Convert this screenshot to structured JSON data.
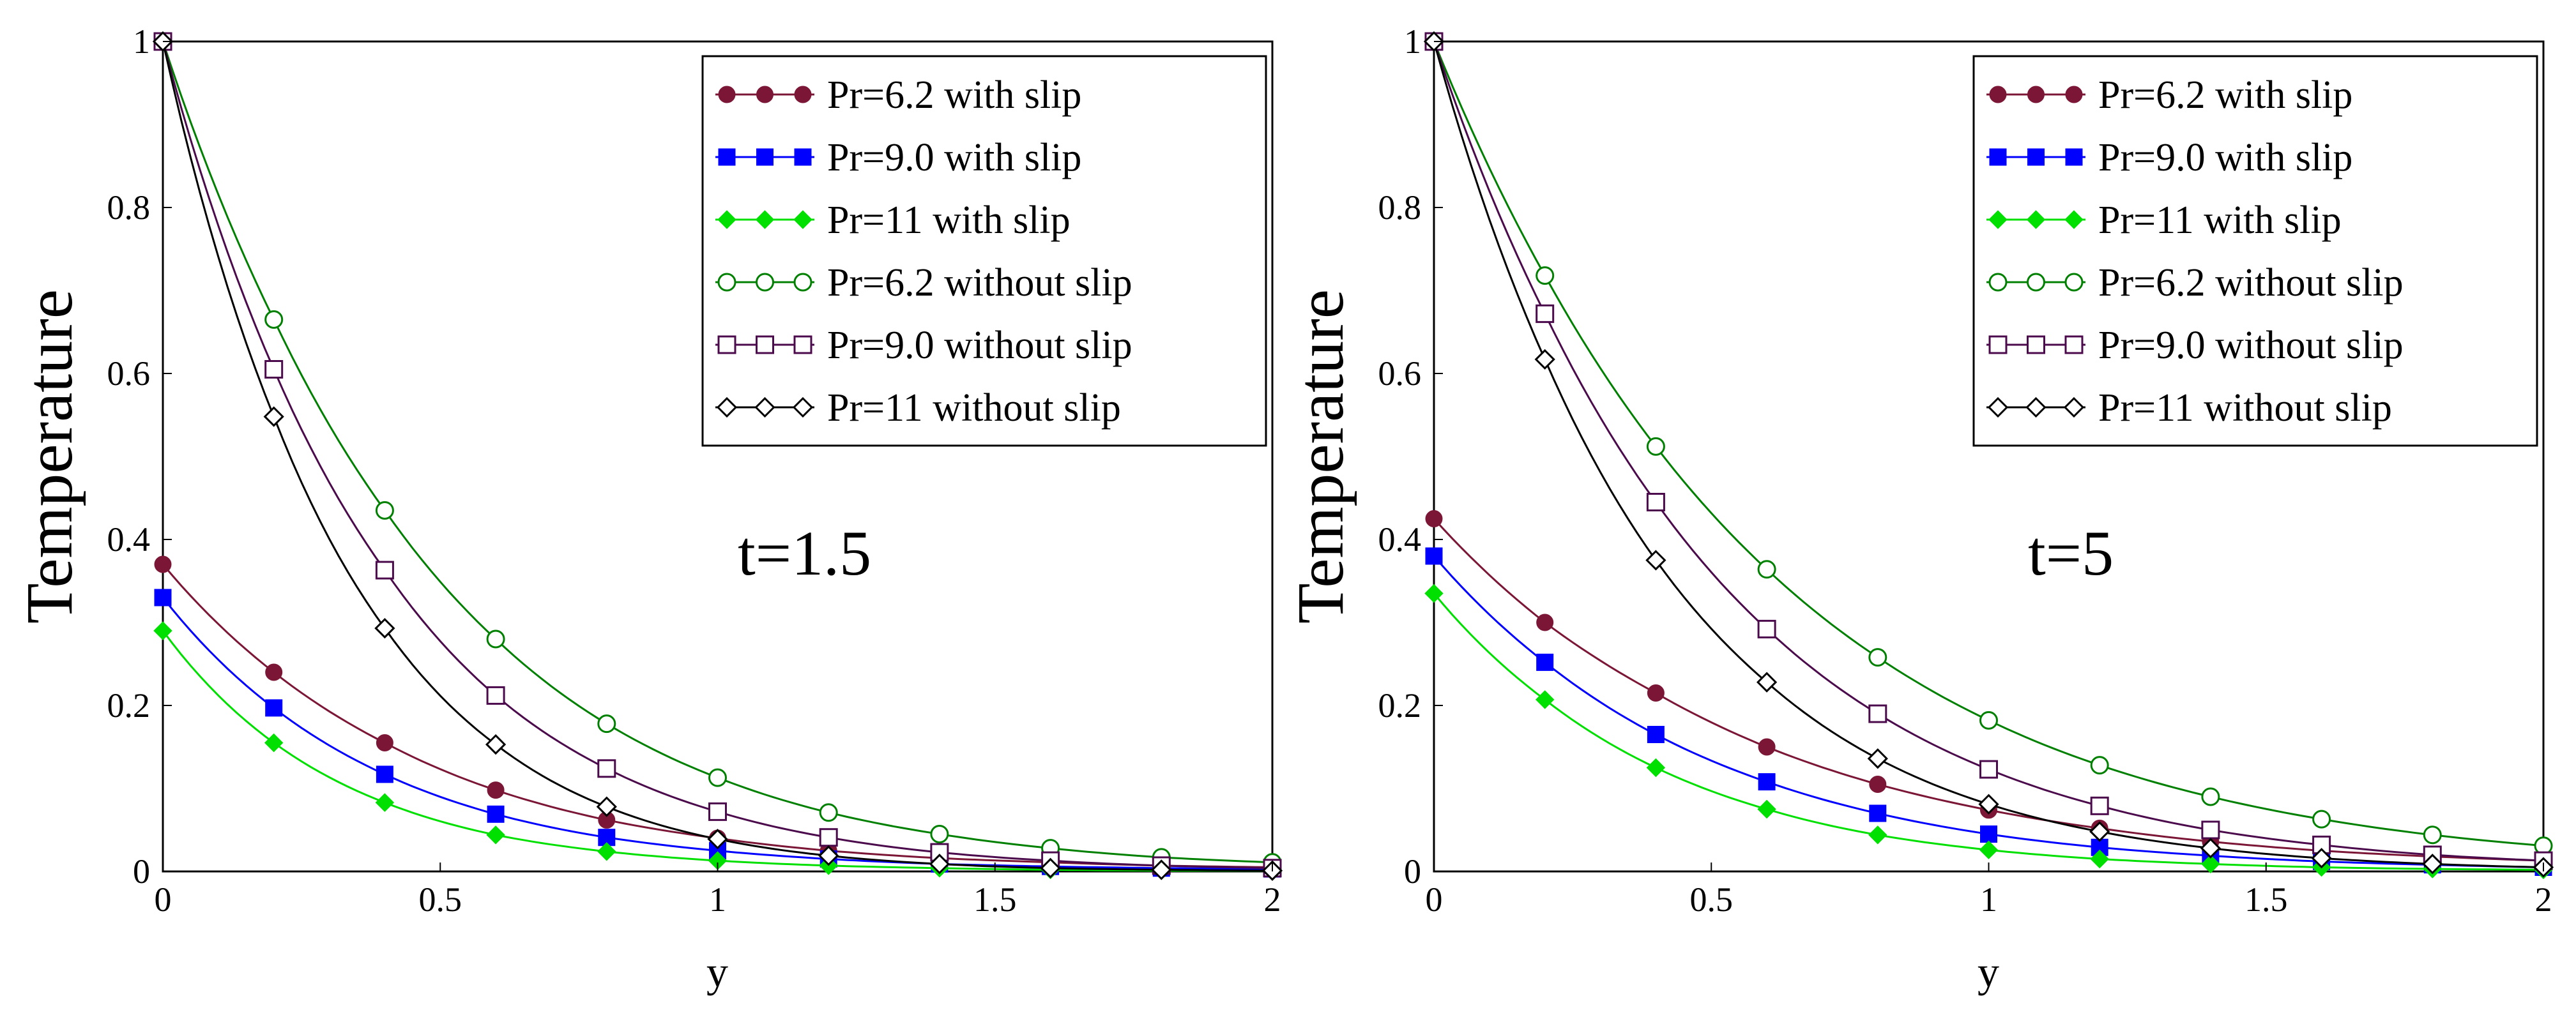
{
  "chart_data": [
    {
      "type": "line",
      "annotation": "t=1.5",
      "xlabel": "y",
      "ylabel": "Temperature",
      "xlim": [
        0,
        2
      ],
      "ylim": [
        0,
        1
      ],
      "xticks": [
        "0",
        "0.5",
        "1",
        "1.5",
        "2"
      ],
      "yticks": [
        "0",
        "0.2",
        "0.4",
        "0.6",
        "0.8",
        "1"
      ],
      "legend_position": "top-right",
      "x": [
        0,
        0.2,
        0.4,
        0.6,
        0.8,
        1.0,
        1.2,
        1.4,
        1.6,
        1.8,
        2.0
      ],
      "series": [
        {
          "name": "Pr=6.2 with slip",
          "color": "#7b1636",
          "marker": "filled-circle",
          "values": [
            0.37,
            0.24,
            0.155,
            0.098,
            0.062,
            0.04,
            0.025,
            0.016,
            0.011,
            0.007,
            0.005
          ]
        },
        {
          "name": "Pr=9.0 with slip",
          "color": "#0000ff",
          "marker": "filled-square",
          "values": [
            0.33,
            0.197,
            0.117,
            0.069,
            0.041,
            0.025,
            0.015,
            0.009,
            0.006,
            0.004,
            0.003
          ]
        },
        {
          "name": "Pr=11 with slip",
          "color": "#00e000",
          "marker": "filled-diamond",
          "values": [
            0.29,
            0.155,
            0.083,
            0.044,
            0.024,
            0.013,
            0.007,
            0.004,
            0.002,
            0.001,
            0.001
          ]
        },
        {
          "name": "Pr=6.2 without slip",
          "color": "#008000",
          "marker": "open-circle",
          "values": [
            1.0,
            0.665,
            0.435,
            0.28,
            0.178,
            0.113,
            0.071,
            0.045,
            0.028,
            0.017,
            0.011
          ]
        },
        {
          "name": "Pr=9.0 without slip",
          "color": "#4b0a4b",
          "marker": "open-square",
          "values": [
            1.0,
            0.605,
            0.363,
            0.212,
            0.124,
            0.072,
            0.041,
            0.023,
            0.013,
            0.007,
            0.004
          ]
        },
        {
          "name": "Pr=11 without slip",
          "color": "#000000",
          "marker": "open-diamond",
          "values": [
            1.0,
            0.548,
            0.293,
            0.153,
            0.078,
            0.039,
            0.019,
            0.009,
            0.004,
            0.002,
            0.001
          ]
        }
      ]
    },
    {
      "type": "line",
      "annotation": "t=5",
      "xlabel": "y",
      "ylabel": "Temperature",
      "xlim": [
        0,
        2
      ],
      "ylim": [
        0,
        1
      ],
      "xticks": [
        "0",
        "0.5",
        "1",
        "1.5",
        "2"
      ],
      "yticks": [
        "0",
        "0.2",
        "0.4",
        "0.6",
        "0.8",
        "1"
      ],
      "legend_position": "top-right",
      "x": [
        0,
        0.2,
        0.4,
        0.6,
        0.8,
        1.0,
        1.2,
        1.4,
        1.6,
        1.8,
        2.0
      ],
      "series": [
        {
          "name": "Pr=6.2 with slip",
          "color": "#7b1636",
          "marker": "filled-circle",
          "values": [
            0.425,
            0.3,
            0.215,
            0.15,
            0.105,
            0.074,
            0.052,
            0.036,
            0.025,
            0.018,
            0.013
          ]
        },
        {
          "name": "Pr=9.0 with slip",
          "color": "#0000ff",
          "marker": "filled-square",
          "values": [
            0.38,
            0.252,
            0.165,
            0.108,
            0.07,
            0.045,
            0.029,
            0.019,
            0.012,
            0.008,
            0.005
          ]
        },
        {
          "name": "Pr=11 with slip",
          "color": "#00e000",
          "marker": "filled-diamond",
          "values": [
            0.335,
            0.207,
            0.125,
            0.075,
            0.044,
            0.026,
            0.015,
            0.009,
            0.005,
            0.003,
            0.002
          ]
        },
        {
          "name": "Pr=6.2 without slip",
          "color": "#008000",
          "marker": "open-circle",
          "values": [
            1.0,
            0.718,
            0.512,
            0.364,
            0.258,
            0.182,
            0.128,
            0.09,
            0.063,
            0.044,
            0.031
          ]
        },
        {
          "name": "Pr=9.0 without slip",
          "color": "#4b0a4b",
          "marker": "open-square",
          "values": [
            1.0,
            0.672,
            0.445,
            0.292,
            0.19,
            0.123,
            0.079,
            0.05,
            0.032,
            0.02,
            0.013
          ]
        },
        {
          "name": "Pr=11 without slip",
          "color": "#000000",
          "marker": "open-diamond",
          "values": [
            1.0,
            0.617,
            0.375,
            0.228,
            0.136,
            0.081,
            0.048,
            0.028,
            0.016,
            0.009,
            0.005
          ]
        }
      ]
    }
  ]
}
